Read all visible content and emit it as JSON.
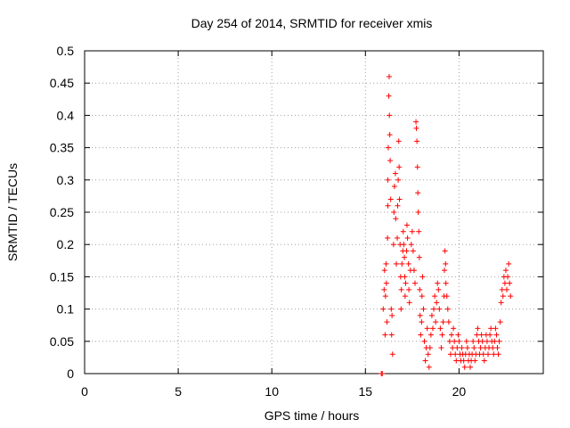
{
  "chart_data": {
    "type": "scatter",
    "title": "Day 254 of 2014, SRMTID for receiver xmis",
    "xlabel": "GPS time / hours",
    "ylabel": "SRMTID / TECUs",
    "xlim": [
      0,
      24.5
    ],
    "ylim": [
      0,
      0.5
    ],
    "xticks": [
      0,
      5,
      10,
      15,
      20
    ],
    "yticks": [
      0,
      0.05,
      0.1,
      0.15,
      0.2,
      0.25,
      0.3,
      0.35,
      0.4,
      0.45,
      0.5
    ],
    "xtick_labels": [
      "0",
      "5",
      "10",
      "15",
      "20"
    ],
    "ytick_labels": [
      "0",
      "0.05",
      "0.1",
      "0.15",
      "0.2",
      "0.25",
      "0.3",
      "0.35",
      "0.4",
      "0.45",
      "0.5"
    ],
    "grid": true,
    "marker": "+",
    "marker_color": "#ff0000",
    "series": [
      {
        "name": "SRMTID",
        "points": [
          [
            15.85,
            0.0
          ],
          [
            15.9,
            0.0
          ],
          [
            15.95,
            0.1
          ],
          [
            16.0,
            0.13
          ],
          [
            16.02,
            0.16
          ],
          [
            16.05,
            0.06
          ],
          [
            16.07,
            0.12
          ],
          [
            16.1,
            0.17
          ],
          [
            16.12,
            0.14
          ],
          [
            16.15,
            0.08
          ],
          [
            16.18,
            0.21
          ],
          [
            16.2,
            0.26
          ],
          [
            16.2,
            0.3
          ],
          [
            16.22,
            0.35
          ],
          [
            16.25,
            0.43
          ],
          [
            16.27,
            0.46
          ],
          [
            16.28,
            0.4
          ],
          [
            16.3,
            0.37
          ],
          [
            16.32,
            0.33
          ],
          [
            16.35,
            0.27
          ],
          [
            16.38,
            0.1
          ],
          [
            16.4,
            0.06
          ],
          [
            16.42,
            0.09
          ],
          [
            16.45,
            0.03
          ],
          [
            16.5,
            0.2
          ],
          [
            16.52,
            0.25
          ],
          [
            16.55,
            0.29
          ],
          [
            16.6,
            0.31
          ],
          [
            16.62,
            0.24
          ],
          [
            16.65,
            0.17
          ],
          [
            16.7,
            0.21
          ],
          [
            16.72,
            0.26
          ],
          [
            16.75,
            0.3
          ],
          [
            16.78,
            0.36
          ],
          [
            16.8,
            0.32
          ],
          [
            16.82,
            0.27
          ],
          [
            16.85,
            0.2
          ],
          [
            16.88,
            0.15
          ],
          [
            16.9,
            0.1
          ],
          [
            16.92,
            0.13
          ],
          [
            16.95,
            0.17
          ],
          [
            17.0,
            0.19
          ],
          [
            17.02,
            0.22
          ],
          [
            17.05,
            0.2
          ],
          [
            17.08,
            0.18
          ],
          [
            17.1,
            0.15
          ],
          [
            17.12,
            0.12
          ],
          [
            17.15,
            0.14
          ],
          [
            17.2,
            0.19
          ],
          [
            17.22,
            0.23
          ],
          [
            17.25,
            0.21
          ],
          [
            17.3,
            0.17
          ],
          [
            17.32,
            0.13
          ],
          [
            17.35,
            0.11
          ],
          [
            17.4,
            0.16
          ],
          [
            17.45,
            0.2
          ],
          [
            17.5,
            0.22
          ],
          [
            17.55,
            0.19
          ],
          [
            17.6,
            0.16
          ],
          [
            17.65,
            0.14
          ],
          [
            17.7,
            0.39
          ],
          [
            17.72,
            0.38
          ],
          [
            17.75,
            0.36
          ],
          [
            17.78,
            0.32
          ],
          [
            17.8,
            0.28
          ],
          [
            17.82,
            0.25
          ],
          [
            17.85,
            0.22
          ],
          [
            17.88,
            0.18
          ],
          [
            17.9,
            0.13
          ],
          [
            17.92,
            0.09
          ],
          [
            17.95,
            0.06
          ],
          [
            18.0,
            0.08
          ],
          [
            18.02,
            0.12
          ],
          [
            18.05,
            0.15
          ],
          [
            18.1,
            0.1
          ],
          [
            18.15,
            0.05
          ],
          [
            18.2,
            0.02
          ],
          [
            18.25,
            0.04
          ],
          [
            18.3,
            0.07
          ],
          [
            18.35,
            0.03
          ],
          [
            18.4,
            0.01
          ],
          [
            18.45,
            0.04
          ],
          [
            18.5,
            0.06
          ],
          [
            18.55,
            0.09
          ],
          [
            18.6,
            0.07
          ],
          [
            18.65,
            0.1
          ],
          [
            18.7,
            0.12
          ],
          [
            18.75,
            0.08
          ],
          [
            18.8,
            0.11
          ],
          [
            18.85,
            0.14
          ],
          [
            18.9,
            0.13
          ],
          [
            18.95,
            0.1
          ],
          [
            19.0,
            0.07
          ],
          [
            19.05,
            0.04
          ],
          [
            19.1,
            0.06
          ],
          [
            19.15,
            0.08
          ],
          [
            19.2,
            0.12
          ],
          [
            19.22,
            0.16
          ],
          [
            19.25,
            0.19
          ],
          [
            19.28,
            0.17
          ],
          [
            19.3,
            0.14
          ],
          [
            19.35,
            0.12
          ],
          [
            19.4,
            0.1
          ],
          [
            19.45,
            0.08
          ],
          [
            19.5,
            0.05
          ],
          [
            19.55,
            0.03
          ],
          [
            19.6,
            0.06
          ],
          [
            19.65,
            0.04
          ],
          [
            19.7,
            0.07
          ],
          [
            19.75,
            0.05
          ],
          [
            19.8,
            0.03
          ],
          [
            19.85,
            0.02
          ],
          [
            19.9,
            0.04
          ],
          [
            19.95,
            0.06
          ],
          [
            20.0,
            0.05
          ],
          [
            20.05,
            0.03
          ],
          [
            20.1,
            0.02
          ],
          [
            20.15,
            0.04
          ],
          [
            20.2,
            0.03
          ],
          [
            20.25,
            0.02
          ],
          [
            20.3,
            0.01
          ],
          [
            20.35,
            0.03
          ],
          [
            20.4,
            0.05
          ],
          [
            20.45,
            0.04
          ],
          [
            20.5,
            0.02
          ],
          [
            20.55,
            0.03
          ],
          [
            20.6,
            0.01
          ],
          [
            20.65,
            0.02
          ],
          [
            20.7,
            0.03
          ],
          [
            20.75,
            0.05
          ],
          [
            20.8,
            0.04
          ],
          [
            20.85,
            0.02
          ],
          [
            20.9,
            0.03
          ],
          [
            20.95,
            0.06
          ],
          [
            21.0,
            0.07
          ],
          [
            21.05,
            0.05
          ],
          [
            21.1,
            0.03
          ],
          [
            21.15,
            0.04
          ],
          [
            21.2,
            0.06
          ],
          [
            21.25,
            0.05
          ],
          [
            21.3,
            0.03
          ],
          [
            21.35,
            0.02
          ],
          [
            21.4,
            0.04
          ],
          [
            21.45,
            0.06
          ],
          [
            21.5,
            0.05
          ],
          [
            21.55,
            0.03
          ],
          [
            21.6,
            0.04
          ],
          [
            21.65,
            0.06
          ],
          [
            21.7,
            0.07
          ],
          [
            21.75,
            0.05
          ],
          [
            21.8,
            0.04
          ],
          [
            21.85,
            0.03
          ],
          [
            21.9,
            0.05
          ],
          [
            21.95,
            0.07
          ],
          [
            22.0,
            0.06
          ],
          [
            22.05,
            0.04
          ],
          [
            22.1,
            0.03
          ],
          [
            22.15,
            0.05
          ],
          [
            22.2,
            0.08
          ],
          [
            22.25,
            0.11
          ],
          [
            22.3,
            0.13
          ],
          [
            22.35,
            0.12
          ],
          [
            22.4,
            0.15
          ],
          [
            22.45,
            0.14
          ],
          [
            22.5,
            0.16
          ],
          [
            22.55,
            0.13
          ],
          [
            22.6,
            0.15
          ],
          [
            22.65,
            0.17
          ],
          [
            22.7,
            0.14
          ],
          [
            22.75,
            0.12
          ]
        ]
      }
    ]
  }
}
